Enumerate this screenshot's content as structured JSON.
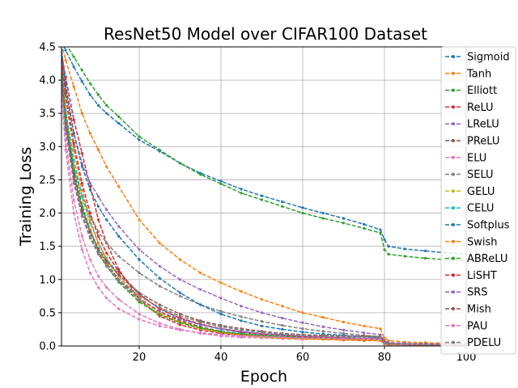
{
  "chart_data": {
    "type": "line",
    "title": "ResNet50 Model over CIFAR100 Dataset",
    "xlabel": "Epoch",
    "ylabel": "Training Loss",
    "xlim": [
      1,
      100
    ],
    "ylim": [
      0.0,
      4.5
    ],
    "xticks": [
      20,
      40,
      60,
      80,
      100
    ],
    "xtick_labels": [
      "20",
      "40",
      "60",
      "80",
      "100"
    ],
    "yticks": [
      0.0,
      0.5,
      1.0,
      1.5,
      2.0,
      2.5,
      3.0,
      3.5,
      4.0,
      4.5
    ],
    "ytick_labels": [
      "0.0",
      "0.5",
      "1.0",
      "1.5",
      "2.0",
      "2.5",
      "3.0",
      "3.5",
      "4.0",
      "4.5"
    ],
    "grid": true,
    "legend_position": "right",
    "x": [
      1,
      2,
      4,
      6,
      8,
      10,
      12,
      15,
      20,
      25,
      30,
      35,
      40,
      45,
      50,
      55,
      60,
      65,
      70,
      75,
      79,
      80,
      81,
      85,
      90,
      95,
      100
    ],
    "series": [
      {
        "name": "Sigmoid",
        "color": "#1f77b4",
        "values": [
          4.58,
          4.45,
          4.2,
          3.98,
          3.78,
          3.62,
          3.5,
          3.35,
          3.1,
          2.93,
          2.75,
          2.6,
          2.48,
          2.36,
          2.26,
          2.17,
          2.08,
          2.0,
          1.92,
          1.83,
          1.75,
          1.6,
          1.5,
          1.46,
          1.43,
          1.4,
          1.38
        ]
      },
      {
        "name": "Tanh",
        "color": "#ff7f0e",
        "values": [
          4.55,
          4.3,
          3.9,
          3.5,
          3.2,
          2.95,
          2.7,
          2.4,
          1.9,
          1.55,
          1.3,
          1.1,
          0.95,
          0.82,
          0.7,
          0.6,
          0.5,
          0.43,
          0.36,
          0.3,
          0.26,
          0.12,
          0.08,
          0.06,
          0.05,
          0.04,
          0.03
        ]
      },
      {
        "name": "Elliott",
        "color": "#2ca02c",
        "values": [
          4.6,
          4.55,
          4.35,
          4.15,
          3.95,
          3.78,
          3.62,
          3.45,
          3.15,
          2.95,
          2.75,
          2.58,
          2.44,
          2.3,
          2.2,
          2.1,
          2.0,
          1.92,
          1.85,
          1.77,
          1.7,
          1.45,
          1.38,
          1.35,
          1.32,
          1.3,
          1.28
        ]
      },
      {
        "name": "ReLU",
        "color": "#d62728",
        "values": [
          4.4,
          4.05,
          3.4,
          2.9,
          2.4,
          1.9,
          1.55,
          1.15,
          0.7,
          0.45,
          0.32,
          0.24,
          0.19,
          0.16,
          0.14,
          0.12,
          0.11,
          0.1,
          0.09,
          0.08,
          0.08,
          0.03,
          0.02,
          0.02,
          0.01,
          0.01,
          0.01
        ]
      },
      {
        "name": "LReLU",
        "color": "#9467bd",
        "values": [
          4.35,
          3.85,
          3.2,
          2.75,
          2.45,
          2.25,
          2.05,
          1.8,
          1.45,
          1.2,
          1.0,
          0.85,
          0.72,
          0.6,
          0.5,
          0.42,
          0.35,
          0.29,
          0.24,
          0.2,
          0.17,
          0.08,
          0.05,
          0.04,
          0.03,
          0.03,
          0.02
        ]
      },
      {
        "name": "PReLU",
        "color": "#8c564b",
        "values": [
          4.1,
          3.4,
          2.6,
          2.1,
          1.75,
          1.45,
          1.25,
          1.0,
          0.72,
          0.52,
          0.38,
          0.29,
          0.22,
          0.18,
          0.15,
          0.13,
          0.12,
          0.11,
          0.1,
          0.1,
          0.09,
          0.03,
          0.02,
          0.02,
          0.02,
          0.01,
          0.01
        ]
      },
      {
        "name": "ELU",
        "color": "#e377c2",
        "values": [
          3.9,
          3.1,
          2.2,
          1.65,
          1.3,
          1.05,
          0.88,
          0.7,
          0.48,
          0.34,
          0.25,
          0.19,
          0.15,
          0.13,
          0.12,
          0.11,
          0.1,
          0.1,
          0.09,
          0.09,
          0.08,
          0.03,
          0.02,
          0.02,
          0.01,
          0.01,
          0.01
        ]
      },
      {
        "name": "SELU",
        "color": "#7f7f7f",
        "values": [
          4.15,
          3.45,
          2.7,
          2.25,
          1.95,
          1.72,
          1.55,
          1.35,
          1.1,
          0.9,
          0.75,
          0.62,
          0.52,
          0.44,
          0.37,
          0.31,
          0.26,
          0.22,
          0.19,
          0.16,
          0.14,
          0.05,
          0.03,
          0.03,
          0.02,
          0.02,
          0.02
        ]
      },
      {
        "name": "GELU",
        "color": "#bcbd22",
        "values": [
          4.2,
          3.5,
          2.7,
          2.15,
          1.75,
          1.45,
          1.22,
          0.98,
          0.68,
          0.48,
          0.35,
          0.26,
          0.2,
          0.16,
          0.13,
          0.12,
          0.11,
          0.1,
          0.09,
          0.09,
          0.08,
          0.03,
          0.02,
          0.02,
          0.01,
          0.01,
          0.01
        ]
      },
      {
        "name": "CELU",
        "color": "#17becf",
        "values": [
          4.25,
          3.55,
          2.8,
          2.25,
          1.85,
          1.55,
          1.32,
          1.08,
          0.78,
          0.56,
          0.42,
          0.32,
          0.25,
          0.2,
          0.17,
          0.15,
          0.13,
          0.12,
          0.11,
          0.1,
          0.1,
          0.04,
          0.02,
          0.02,
          0.02,
          0.01,
          0.01
        ]
      },
      {
        "name": "Softplus",
        "color": "#1f77b4",
        "values": [
          4.45,
          3.95,
          3.2,
          2.7,
          2.35,
          2.1,
          1.9,
          1.65,
          1.3,
          1.02,
          0.8,
          0.62,
          0.48,
          0.38,
          0.3,
          0.25,
          0.21,
          0.18,
          0.16,
          0.14,
          0.13,
          0.05,
          0.03,
          0.03,
          0.02,
          0.02,
          0.02
        ]
      },
      {
        "name": "Swish",
        "color": "#ff7f0e",
        "values": [
          4.3,
          3.7,
          2.95,
          2.35,
          1.9,
          1.55,
          1.3,
          1.05,
          0.72,
          0.5,
          0.36,
          0.27,
          0.21,
          0.17,
          0.14,
          0.12,
          0.11,
          0.1,
          0.09,
          0.09,
          0.08,
          0.03,
          0.02,
          0.02,
          0.01,
          0.01,
          0.01
        ]
      },
      {
        "name": "ABReLU",
        "color": "#2ca02c",
        "values": [
          4.2,
          3.45,
          2.65,
          2.1,
          1.72,
          1.42,
          1.2,
          0.96,
          0.66,
          0.47,
          0.35,
          0.27,
          0.21,
          0.18,
          0.16,
          0.14,
          0.13,
          0.12,
          0.12,
          0.11,
          0.11,
          0.05,
          0.03,
          0.02,
          0.02,
          0.02,
          0.02
        ]
      },
      {
        "name": "LiSHT",
        "color": "#d62728",
        "values": [
          4.3,
          3.8,
          3.05,
          2.45,
          2.0,
          1.65,
          1.4,
          1.12,
          0.78,
          0.56,
          0.42,
          0.33,
          0.26,
          0.21,
          0.18,
          0.16,
          0.14,
          0.13,
          0.12,
          0.11,
          0.11,
          0.04,
          0.03,
          0.02,
          0.02,
          0.02,
          0.01
        ]
      },
      {
        "name": "SRS",
        "color": "#9467bd",
        "values": [
          4.0,
          3.3,
          2.5,
          2.0,
          1.65,
          1.4,
          1.2,
          0.98,
          0.7,
          0.52,
          0.4,
          0.32,
          0.26,
          0.22,
          0.19,
          0.17,
          0.15,
          0.14,
          0.13,
          0.12,
          0.12,
          0.05,
          0.03,
          0.03,
          0.02,
          0.02,
          0.02
        ]
      },
      {
        "name": "Mish",
        "color": "#8c564b",
        "values": [
          4.05,
          3.35,
          2.55,
          2.05,
          1.72,
          1.47,
          1.28,
          1.07,
          0.8,
          0.62,
          0.48,
          0.38,
          0.31,
          0.26,
          0.22,
          0.19,
          0.17,
          0.16,
          0.15,
          0.15,
          0.14,
          0.06,
          0.04,
          0.03,
          0.03,
          0.02,
          0.02
        ]
      },
      {
        "name": "PAU",
        "color": "#e377c2",
        "values": [
          3.8,
          2.95,
          2.0,
          1.45,
          1.1,
          0.88,
          0.72,
          0.56,
          0.4,
          0.3,
          0.24,
          0.2,
          0.17,
          0.15,
          0.14,
          0.13,
          0.12,
          0.12,
          0.11,
          0.11,
          0.1,
          0.04,
          0.03,
          0.02,
          0.02,
          0.02,
          0.02
        ]
      },
      {
        "name": "PDELU",
        "color": "#7f7f7f",
        "values": [
          4.0,
          3.25,
          2.45,
          1.95,
          1.62,
          1.38,
          1.2,
          1.0,
          0.75,
          0.58,
          0.45,
          0.36,
          0.29,
          0.24,
          0.21,
          0.18,
          0.16,
          0.15,
          0.14,
          0.14,
          0.13,
          0.05,
          0.03,
          0.03,
          0.02,
          0.02,
          0.02
        ]
      }
    ]
  }
}
